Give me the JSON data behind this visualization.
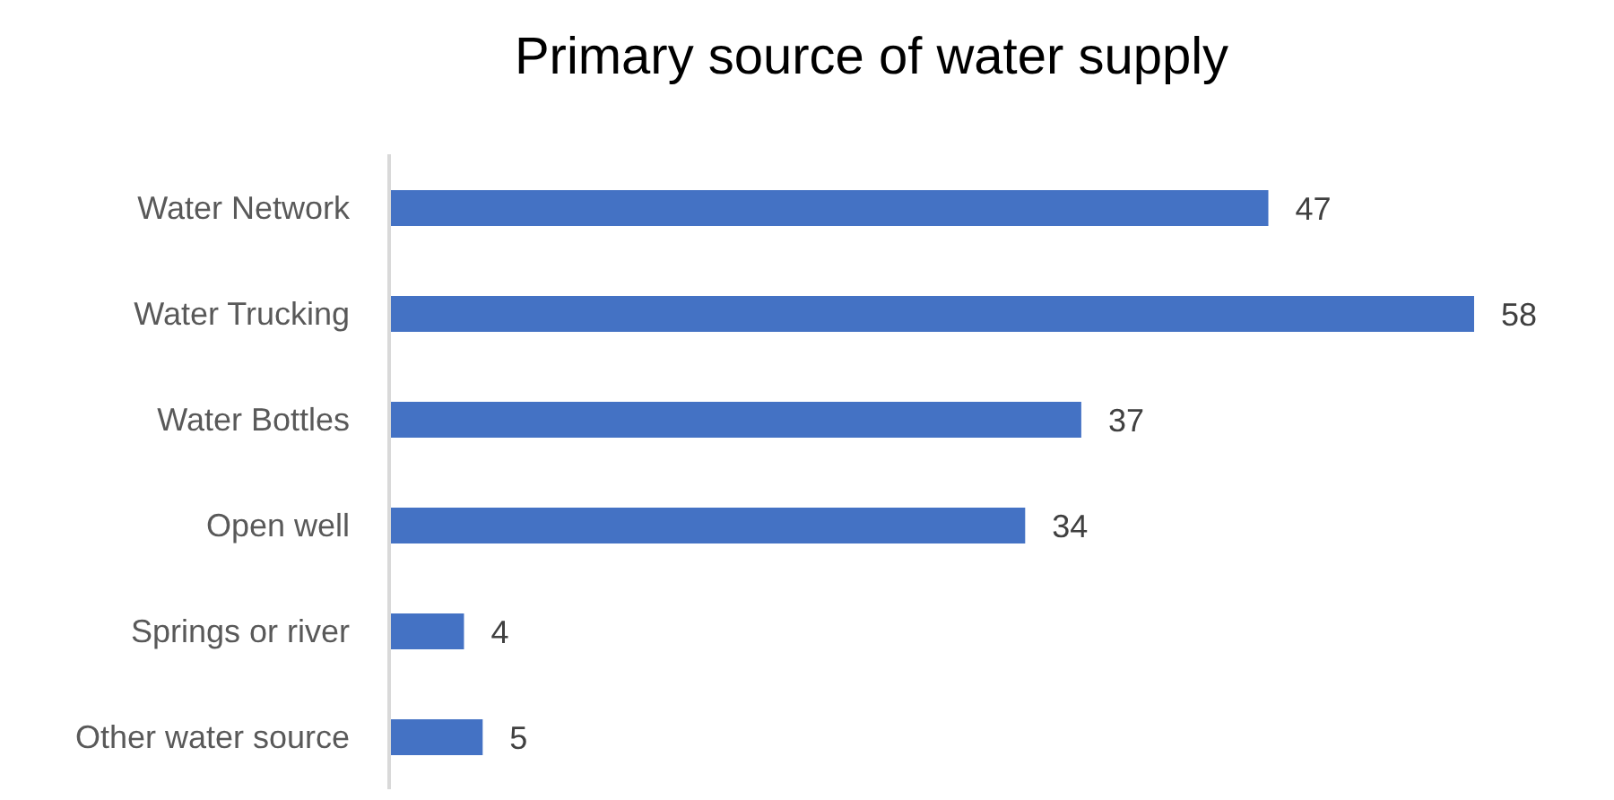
{
  "chart_data": {
    "type": "bar",
    "orientation": "horizontal",
    "title": "Primary source of water supply",
    "categories": [
      "Water Network",
      "Water Trucking",
      "Water Bottles",
      "Open well",
      "Springs or river",
      "Other water source"
    ],
    "values": [
      47,
      58,
      37,
      34,
      4,
      5
    ],
    "color": "#4472c4",
    "data_labels": true,
    "tick_labels": "y"
  }
}
